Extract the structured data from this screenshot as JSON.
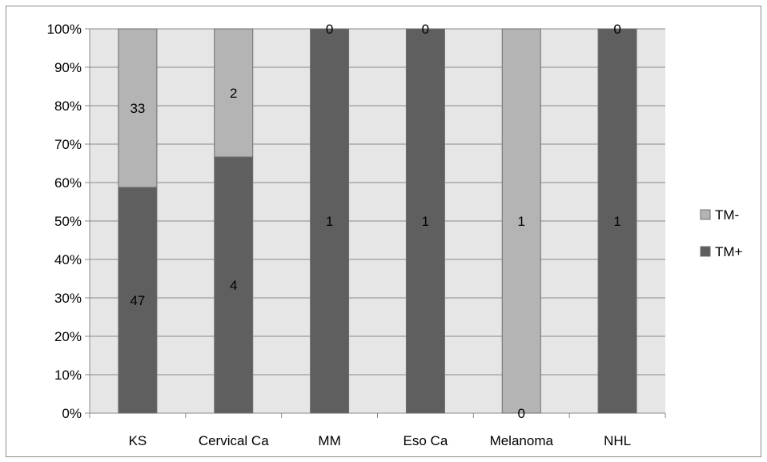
{
  "chart_data": {
    "type": "bar",
    "stacked": "percent",
    "categories": [
      "KS",
      "Cervical Ca",
      "MM",
      "Eso Ca",
      "Melanoma",
      "NHL"
    ],
    "series": [
      {
        "name": "TM+",
        "values": [
          47,
          4,
          1,
          1,
          0,
          1
        ],
        "color": "#5f5f5f"
      },
      {
        "name": "TM-",
        "values": [
          33,
          2,
          0,
          0,
          1,
          0
        ],
        "color": "#b4b4b4"
      }
    ],
    "title": "",
    "xlabel": "",
    "ylabel": "",
    "ylim": [
      0,
      100
    ],
    "y_ticks": [
      "0%",
      "10%",
      "20%",
      "30%",
      "40%",
      "50%",
      "60%",
      "70%",
      "80%",
      "90%",
      "100%"
    ],
    "grid": true,
    "plot_background": "#e6e6e6",
    "legend": {
      "placement": "right",
      "order": [
        "TM-",
        "TM+"
      ]
    }
  }
}
